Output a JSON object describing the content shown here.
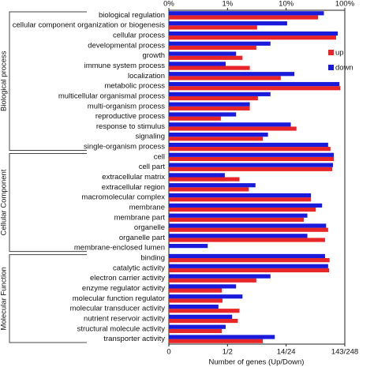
{
  "chart_data": {
    "type": "bar",
    "orientation": "horizontal",
    "x_scale": "log",
    "xlabel": "Number of genes (Up/Down)",
    "xlim": [
      0.1,
      100
    ],
    "xticks": [
      {
        "value": 0.1,
        "label": "0%"
      },
      {
        "value": 1,
        "label": "1%"
      },
      {
        "value": 10,
        "label": "10%"
      },
      {
        "value": 100,
        "label": "100%"
      }
    ],
    "x2ticks": [
      {
        "value": 0.1,
        "label": "0"
      },
      {
        "value": 1,
        "label": "1/2"
      },
      {
        "value": 10,
        "label": "14/24"
      },
      {
        "value": 100,
        "label": "143/248"
      }
    ],
    "legend": "upper right",
    "groups": [
      {
        "name": "Biological process",
        "categories": [
          "biological regulation",
          "cellular component organization or biogenesis",
          "cellular process",
          "developmental process",
          "growth",
          "immune system process",
          "localization",
          "metabolic process",
          "multicellular organismal process",
          "multi-organism process",
          "reproductive process",
          "response to stimulus",
          "signaling",
          "single-organism process"
        ]
      },
      {
        "name": "Cellular Component",
        "categories": [
          "cell",
          "cell part",
          "extracellular matrix",
          "extracellular region",
          "macromolecular complex",
          "membrane",
          "membrane part",
          "organelle",
          "organelle part",
          "membrane-enclosed lumen"
        ]
      },
      {
        "name": "Molecular Function",
        "categories": [
          "binding",
          "catalytic activity",
          "electron carrier activity",
          "enzyme regulator activity",
          "molecular function regulator",
          "molecular transducer activity",
          "nutrient reservoir activity",
          "structural molecule activity",
          "transporter activity"
        ]
      }
    ],
    "series": [
      {
        "name": "up",
        "color": "#e8262a",
        "values": [
          35,
          3.2,
          71,
          3.1,
          1.8,
          2.4,
          8.1,
          84,
          3.3,
          2.4,
          0.77,
          15,
          4.0,
          57,
          65,
          61,
          1.6,
          2.3,
          26.5,
          32,
          20,
          52,
          46,
          null,
          55,
          54,
          3.1,
          0.8,
          0.82,
          1.6,
          1.5,
          0.8,
          4.0
        ]
      },
      {
        "name": "down",
        "color": "#1a1adb",
        "values": [
          44,
          10.4,
          76,
          5.4,
          1.4,
          0.93,
          13.8,
          81,
          5.4,
          2.4,
          1.4,
          12,
          4.9,
          52,
          65,
          63,
          0.9,
          3.0,
          26.5,
          41,
          23,
          48,
          23,
          0.46,
          46,
          52,
          5.4,
          1.4,
          1.8,
          0.7,
          1.2,
          0.93,
          6.4
        ]
      }
    ]
  }
}
